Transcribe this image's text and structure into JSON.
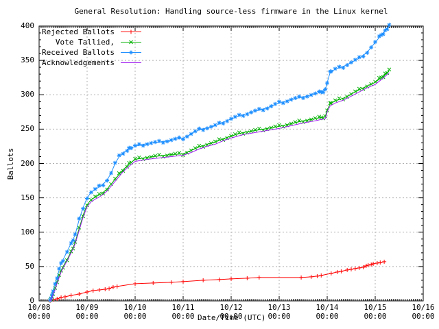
{
  "chart_data": {
    "type": "line",
    "title": "General Resolution: Handling source-less firmware in the Linux kernel",
    "xlabel": "Date/Time (UTC)",
    "ylabel": "Ballots",
    "x_unit": "hours since 10/08 00:00 UTC",
    "x_range_hours": [
      0,
      192
    ],
    "y_range": [
      0,
      400
    ],
    "grid": "dashed",
    "legend_position": "top-left",
    "x_ticks": [
      {
        "date": "10/08",
        "time": "00:00"
      },
      {
        "date": "10/09",
        "time": "00:00"
      },
      {
        "date": "10/10",
        "time": "00:00"
      },
      {
        "date": "10/11",
        "time": "00:00"
      },
      {
        "date": "10/12",
        "time": "00:00"
      },
      {
        "date": "10/13",
        "time": "00:00"
      },
      {
        "date": "10/14",
        "time": "00:00"
      },
      {
        "date": "10/15",
        "time": "00:00"
      },
      {
        "date": "10/16",
        "time": "00:00"
      }
    ],
    "y_ticks": [
      0,
      50,
      100,
      150,
      200,
      250,
      300,
      350,
      400
    ],
    "series": [
      {
        "id": "rejected",
        "name": "Rejected Ballots",
        "color": "#ff0000",
        "marker": "plus",
        "points": [
          [
            5.5,
            0
          ],
          [
            7,
            2
          ],
          [
            9,
            3
          ],
          [
            11,
            5
          ],
          [
            13,
            6
          ],
          [
            16,
            8
          ],
          [
            20,
            10
          ],
          [
            24,
            13
          ],
          [
            27,
            15
          ],
          [
            30,
            16
          ],
          [
            33,
            17
          ],
          [
            35,
            18
          ],
          [
            37,
            20
          ],
          [
            39,
            21
          ],
          [
            48,
            25
          ],
          [
            57,
            26
          ],
          [
            66,
            27
          ],
          [
            72,
            28
          ],
          [
            82,
            30
          ],
          [
            90,
            31
          ],
          [
            96,
            32
          ],
          [
            104,
            33
          ],
          [
            110,
            34
          ],
          [
            131,
            34
          ],
          [
            136,
            35
          ],
          [
            139,
            36
          ],
          [
            141,
            37
          ],
          [
            146,
            40
          ],
          [
            149,
            42
          ],
          [
            151,
            43
          ],
          [
            154,
            45
          ],
          [
            156,
            46
          ],
          [
            158,
            47
          ],
          [
            160,
            48
          ],
          [
            162,
            49
          ],
          [
            163.5,
            51
          ],
          [
            164.5,
            52
          ],
          [
            166,
            53
          ],
          [
            167,
            54
          ],
          [
            169,
            55
          ],
          [
            170.5,
            56
          ],
          [
            172.5,
            57
          ]
        ]
      },
      {
        "id": "tallied",
        "name": "Vote Tallied,",
        "color": "#00b000",
        "marker": "cross",
        "points": [
          [
            5.5,
            0
          ],
          [
            6,
            3
          ],
          [
            6.5,
            7
          ],
          [
            7,
            12
          ],
          [
            8,
            18
          ],
          [
            9,
            28
          ],
          [
            10,
            36
          ],
          [
            11,
            44
          ],
          [
            12,
            50
          ],
          [
            14,
            60
          ],
          [
            16,
            72
          ],
          [
            17,
            78
          ],
          [
            18,
            85
          ],
          [
            20,
            105
          ],
          [
            22,
            125
          ],
          [
            24,
            140
          ],
          [
            26,
            147
          ],
          [
            28,
            151
          ],
          [
            30,
            154
          ],
          [
            32,
            158
          ],
          [
            34,
            163
          ],
          [
            36,
            170
          ],
          [
            38,
            177
          ],
          [
            40,
            184
          ],
          [
            42,
            191
          ],
          [
            45,
            199
          ],
          [
            48,
            206
          ],
          [
            54,
            209
          ],
          [
            60,
            211
          ],
          [
            66,
            213
          ],
          [
            72,
            214
          ],
          [
            76,
            219
          ],
          [
            80,
            224
          ],
          [
            84,
            228
          ],
          [
            88,
            231
          ],
          [
            92,
            236
          ],
          [
            96,
            240
          ],
          [
            102,
            245
          ],
          [
            108,
            248
          ],
          [
            114,
            251
          ],
          [
            120,
            254
          ],
          [
            126,
            258
          ],
          [
            132,
            262
          ],
          [
            138,
            265
          ],
          [
            141,
            267
          ],
          [
            143,
            268
          ],
          [
            144,
            278
          ],
          [
            145.5,
            287
          ],
          [
            148,
            291
          ],
          [
            152,
            295
          ],
          [
            156,
            301
          ],
          [
            160,
            307
          ],
          [
            164,
            313
          ],
          [
            168,
            318
          ],
          [
            171,
            325
          ],
          [
            173,
            330
          ],
          [
            175,
            335
          ]
        ]
      },
      {
        "id": "received",
        "name": "Received Ballots",
        "color": "#1e8fff",
        "marker": "asterisk",
        "points": [
          [
            5.5,
            0
          ],
          [
            6,
            4
          ],
          [
            6.5,
            10
          ],
          [
            7,
            16
          ],
          [
            8,
            24
          ],
          [
            9,
            34
          ],
          [
            10,
            45
          ],
          [
            11,
            55
          ],
          [
            12,
            60
          ],
          [
            14,
            72
          ],
          [
            16,
            84
          ],
          [
            17,
            90
          ],
          [
            18,
            96
          ],
          [
            20,
            118
          ],
          [
            22,
            136
          ],
          [
            24,
            150
          ],
          [
            26,
            158
          ],
          [
            28,
            162
          ],
          [
            30,
            166
          ],
          [
            32,
            170
          ],
          [
            34,
            176
          ],
          [
            36,
            186
          ],
          [
            38,
            200
          ],
          [
            40,
            210
          ],
          [
            42,
            216
          ],
          [
            45,
            221
          ],
          [
            48,
            225
          ],
          [
            54,
            229
          ],
          [
            60,
            231
          ],
          [
            66,
            234
          ],
          [
            72,
            237
          ],
          [
            76,
            243
          ],
          [
            80,
            249
          ],
          [
            84,
            252
          ],
          [
            88,
            255
          ],
          [
            92,
            260
          ],
          [
            96,
            265
          ],
          [
            102,
            271
          ],
          [
            108,
            276
          ],
          [
            114,
            281
          ],
          [
            120,
            288
          ],
          [
            126,
            293
          ],
          [
            132,
            297
          ],
          [
            138,
            301
          ],
          [
            141,
            304
          ],
          [
            143,
            307
          ],
          [
            144,
            318
          ],
          [
            145.5,
            333
          ],
          [
            148,
            337
          ],
          [
            152,
            341
          ],
          [
            156,
            347
          ],
          [
            160,
            353
          ],
          [
            164,
            362
          ],
          [
            168,
            376
          ],
          [
            171,
            387
          ],
          [
            173,
            393
          ],
          [
            175,
            400
          ]
        ]
      },
      {
        "id": "acks",
        "name": "Acknowledgements",
        "color": "#a020f0",
        "marker": "none",
        "points": [
          [
            5.5,
            0
          ],
          [
            6,
            2
          ],
          [
            6.5,
            5
          ],
          [
            7,
            10
          ],
          [
            8,
            16
          ],
          [
            9,
            26
          ],
          [
            10,
            34
          ],
          [
            11,
            42
          ],
          [
            12,
            48
          ],
          [
            14,
            58
          ],
          [
            16,
            70
          ],
          [
            17,
            76
          ],
          [
            18,
            83
          ],
          [
            20,
            102
          ],
          [
            22,
            122
          ],
          [
            24,
            137
          ],
          [
            26,
            144
          ],
          [
            28,
            148
          ],
          [
            30,
            151
          ],
          [
            32,
            155
          ],
          [
            34,
            160
          ],
          [
            36,
            167
          ],
          [
            38,
            174
          ],
          [
            40,
            181
          ],
          [
            42,
            188
          ],
          [
            45,
            196
          ],
          [
            48,
            203
          ],
          [
            54,
            206
          ],
          [
            60,
            208
          ],
          [
            66,
            210
          ],
          [
            72,
            212
          ],
          [
            76,
            216
          ],
          [
            80,
            221
          ],
          [
            84,
            225
          ],
          [
            88,
            228
          ],
          [
            92,
            233
          ],
          [
            96,
            237
          ],
          [
            102,
            242
          ],
          [
            108,
            245
          ],
          [
            114,
            248
          ],
          [
            120,
            251
          ],
          [
            126,
            255
          ],
          [
            132,
            259
          ],
          [
            138,
            262
          ],
          [
            141,
            264
          ],
          [
            143,
            265
          ],
          [
            144,
            275
          ],
          [
            145.5,
            284
          ],
          [
            148,
            288
          ],
          [
            152,
            292
          ],
          [
            156,
            298
          ],
          [
            160,
            304
          ],
          [
            164,
            310
          ],
          [
            168,
            315
          ],
          [
            171,
            322
          ],
          [
            173,
            327
          ],
          [
            175,
            332
          ]
        ]
      }
    ],
    "colors": {
      "grid": "#b0b0b0",
      "axis": "#000000",
      "background": "#ffffff"
    }
  }
}
